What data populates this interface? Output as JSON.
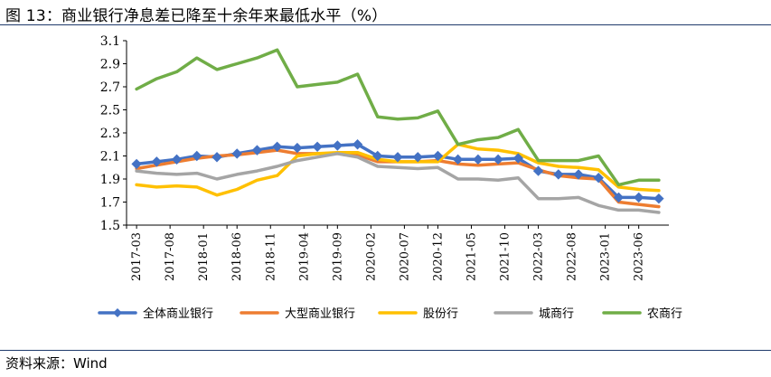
{
  "header": {
    "title": "图 13：商业银行净息差已降至十余年来最低水平（%）"
  },
  "footer": {
    "source": "资料来源：Wind"
  },
  "colors": {
    "全体商业银行": "#4472C4",
    "大型商业银行": "#ED7D31",
    "股份行": "#FFC000",
    "城商行": "#A5A5A5",
    "农商行": "#70AD47"
  },
  "chart_data": {
    "type": "line",
    "title": "商业银行净息差已降至十余年来最低水平（%）",
    "xlabel": "",
    "ylabel": "",
    "ylim": [
      1.5,
      3.1
    ],
    "yticks": [
      1.5,
      1.7,
      1.9,
      2.1,
      2.3,
      2.5,
      2.7,
      2.9,
      3.1
    ],
    "grid": false,
    "legend_position": "bottom",
    "x": [
      "2017-03",
      "2017-06",
      "2017-09",
      "2017-12",
      "2018-03",
      "2018-06",
      "2018-09",
      "2018-12",
      "2019-03",
      "2019-06",
      "2019-09",
      "2019-12",
      "2020-03",
      "2020-06",
      "2020-09",
      "2020-12",
      "2021-03",
      "2021-06",
      "2021-09",
      "2021-12",
      "2022-03",
      "2022-06",
      "2022-09",
      "2022-12",
      "2023-03",
      "2023-06",
      "2023-09"
    ],
    "x_tick_labels": [
      "2017-03",
      "2017-08",
      "2018-01",
      "2018-06",
      "2018-11",
      "2019-04",
      "2019-09",
      "2020-02",
      "2020-07",
      "2020-12",
      "2021-05",
      "2021-10",
      "2022-03",
      "2022-08",
      "2023-01",
      "2023-06"
    ],
    "series": [
      {
        "name": "全体商业银行",
        "marker": "diamond",
        "values": [
          2.03,
          2.05,
          2.07,
          2.1,
          2.09,
          2.12,
          2.15,
          2.18,
          2.17,
          2.18,
          2.19,
          2.2,
          2.1,
          2.09,
          2.09,
          2.1,
          2.07,
          2.07,
          2.07,
          2.08,
          1.97,
          1.94,
          1.94,
          1.91,
          1.74,
          1.74,
          1.73
        ]
      },
      {
        "name": "大型商业银行",
        "marker": "none",
        "values": [
          1.99,
          2.02,
          2.05,
          2.08,
          2.1,
          2.11,
          2.13,
          2.15,
          2.12,
          2.12,
          2.12,
          2.11,
          2.05,
          2.05,
          2.05,
          2.06,
          2.03,
          2.02,
          2.03,
          2.04,
          1.98,
          1.93,
          1.91,
          1.9,
          1.7,
          1.68,
          1.66
        ]
      },
      {
        "name": "股份行",
        "marker": "none",
        "values": [
          1.85,
          1.83,
          1.84,
          1.83,
          1.76,
          1.81,
          1.89,
          1.93,
          2.1,
          2.12,
          2.13,
          2.13,
          2.07,
          2.05,
          2.05,
          2.05,
          2.2,
          2.16,
          2.15,
          2.12,
          2.04,
          2.01,
          2.0,
          1.98,
          1.83,
          1.81,
          1.8
        ]
      },
      {
        "name": "城商行",
        "marker": "none",
        "values": [
          1.97,
          1.95,
          1.94,
          1.95,
          1.9,
          1.94,
          1.97,
          2.01,
          2.06,
          2.09,
          2.12,
          2.09,
          2.01,
          2.0,
          1.99,
          2.0,
          1.9,
          1.9,
          1.89,
          1.91,
          1.73,
          1.73,
          1.74,
          1.67,
          1.63,
          1.63,
          1.61
        ]
      },
      {
        "name": "农商行",
        "marker": "none",
        "values": [
          2.68,
          2.77,
          2.83,
          2.95,
          2.85,
          2.9,
          2.95,
          3.02,
          2.7,
          2.72,
          2.74,
          2.81,
          2.44,
          2.42,
          2.43,
          2.49,
          2.2,
          2.24,
          2.26,
          2.33,
          2.06,
          2.06,
          2.06,
          2.1,
          1.85,
          1.89,
          1.89
        ]
      }
    ]
  }
}
